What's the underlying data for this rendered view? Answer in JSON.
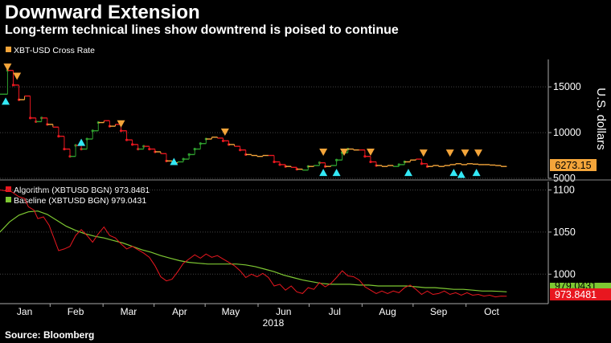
{
  "header": {
    "title": "Downward Extension",
    "subtitle": "Long-term technical lines show downtrend is poised to continue",
    "source": "Source: Bloomberg"
  },
  "chart_data": [
    {
      "type": "line",
      "panel": "price",
      "legend": [
        {
          "name": "XBT-USD Cross Rate",
          "color": "#f4a53a"
        }
      ],
      "ylabel": "U.S. dollars",
      "ylim": [
        5000,
        18000
      ],
      "yticks": [
        "15000",
        "10000",
        "5000"
      ],
      "ytick_values": [
        15000,
        10000,
        5000
      ],
      "last_value_label": "6273.15",
      "last_value": 6273.15,
      "colors": {
        "base": "#f4a53a",
        "up": "#2ea02e",
        "down": "#e8171f",
        "buy_marker": "#33e8f5",
        "sell_marker": "#f4a53a",
        "label_bg": "#f4a53a"
      },
      "x_range": [
        0,
        290
      ],
      "series": [
        {
          "x": 0,
          "y": 14200
        },
        {
          "x": 4,
          "y": 16800
        },
        {
          "x": 7,
          "y": 15200
        },
        {
          "x": 10,
          "y": 13600
        },
        {
          "x": 13,
          "y": 14000
        },
        {
          "x": 16,
          "y": 11600
        },
        {
          "x": 19,
          "y": 11200
        },
        {
          "x": 22,
          "y": 11600
        },
        {
          "x": 25,
          "y": 10900
        },
        {
          "x": 28,
          "y": 10600
        },
        {
          "x": 31,
          "y": 9600
        },
        {
          "x": 34,
          "y": 8200
        },
        {
          "x": 37,
          "y": 7400
        },
        {
          "x": 40,
          "y": 8600
        },
        {
          "x": 43,
          "y": 8200
        },
        {
          "x": 46,
          "y": 9300
        },
        {
          "x": 49,
          "y": 10200
        },
        {
          "x": 52,
          "y": 11100
        },
        {
          "x": 55,
          "y": 11300
        },
        {
          "x": 58,
          "y": 10700
        },
        {
          "x": 61,
          "y": 10900
        },
        {
          "x": 64,
          "y": 10200
        },
        {
          "x": 67,
          "y": 9200
        },
        {
          "x": 70,
          "y": 8700
        },
        {
          "x": 73,
          "y": 8200
        },
        {
          "x": 76,
          "y": 8500
        },
        {
          "x": 79,
          "y": 8200
        },
        {
          "x": 82,
          "y": 7900
        },
        {
          "x": 85,
          "y": 7700
        },
        {
          "x": 88,
          "y": 6900
        },
        {
          "x": 91,
          "y": 6700
        },
        {
          "x": 94,
          "y": 6800
        },
        {
          "x": 97,
          "y": 7100
        },
        {
          "x": 100,
          "y": 7600
        },
        {
          "x": 103,
          "y": 8200
        },
        {
          "x": 106,
          "y": 8800
        },
        {
          "x": 109,
          "y": 9300
        },
        {
          "x": 112,
          "y": 9500
        },
        {
          "x": 115,
          "y": 9400
        },
        {
          "x": 118,
          "y": 9100
        },
        {
          "x": 121,
          "y": 8700
        },
        {
          "x": 124,
          "y": 8500
        },
        {
          "x": 127,
          "y": 8100
        },
        {
          "x": 130,
          "y": 7600
        },
        {
          "x": 133,
          "y": 7500
        },
        {
          "x": 136,
          "y": 7400
        },
        {
          "x": 139,
          "y": 7500
        },
        {
          "x": 142,
          "y": 7500
        },
        {
          "x": 145,
          "y": 6800
        },
        {
          "x": 148,
          "y": 6500
        },
        {
          "x": 151,
          "y": 6300
        },
        {
          "x": 154,
          "y": 6200
        },
        {
          "x": 157,
          "y": 6000
        },
        {
          "x": 160,
          "y": 5900
        },
        {
          "x": 163,
          "y": 6300
        },
        {
          "x": 166,
          "y": 6400
        },
        {
          "x": 169,
          "y": 6700
        },
        {
          "x": 172,
          "y": 6300
        },
        {
          "x": 175,
          "y": 6400
        },
        {
          "x": 178,
          "y": 7000
        },
        {
          "x": 181,
          "y": 7800
        },
        {
          "x": 184,
          "y": 8200
        },
        {
          "x": 187,
          "y": 8100
        },
        {
          "x": 190,
          "y": 8100
        },
        {
          "x": 193,
          "y": 7400
        },
        {
          "x": 196,
          "y": 6800
        },
        {
          "x": 199,
          "y": 6400
        },
        {
          "x": 202,
          "y": 6300
        },
        {
          "x": 205,
          "y": 6400
        },
        {
          "x": 208,
          "y": 6300
        },
        {
          "x": 211,
          "y": 6500
        },
        {
          "x": 214,
          "y": 6800
        },
        {
          "x": 217,
          "y": 7000
        },
        {
          "x": 220,
          "y": 7100
        },
        {
          "x": 223,
          "y": 6600
        },
        {
          "x": 226,
          "y": 6300
        },
        {
          "x": 229,
          "y": 6400
        },
        {
          "x": 232,
          "y": 6300
        },
        {
          "x": 235,
          "y": 6400
        },
        {
          "x": 238,
          "y": 6500
        },
        {
          "x": 241,
          "y": 6600
        },
        {
          "x": 244,
          "y": 6500
        },
        {
          "x": 247,
          "y": 6600
        },
        {
          "x": 250,
          "y": 6550
        },
        {
          "x": 253,
          "y": 6500
        },
        {
          "x": 256,
          "y": 6500
        },
        {
          "x": 259,
          "y": 6450
        },
        {
          "x": 262,
          "y": 6400
        },
        {
          "x": 265,
          "y": 6300
        },
        {
          "x": 268,
          "y": 6273
        }
      ],
      "sell_markers": [
        {
          "x": 4,
          "y": 17200
        },
        {
          "x": 9,
          "y": 16200
        },
        {
          "x": 64,
          "y": 11000
        },
        {
          "x": 119,
          "y": 10100
        },
        {
          "x": 171,
          "y": 7900
        },
        {
          "x": 182,
          "y": 7900
        },
        {
          "x": 196,
          "y": 7900
        },
        {
          "x": 224,
          "y": 7800
        },
        {
          "x": 238,
          "y": 7800
        },
        {
          "x": 246,
          "y": 7800
        },
        {
          "x": 253,
          "y": 7800
        }
      ],
      "buy_markers": [
        {
          "x": 3,
          "y": 13400
        },
        {
          "x": 43,
          "y": 8900
        },
        {
          "x": 92,
          "y": 6800
        },
        {
          "x": 171,
          "y": 5600
        },
        {
          "x": 178,
          "y": 5600
        },
        {
          "x": 216,
          "y": 5600
        },
        {
          "x": 240,
          "y": 5600
        },
        {
          "x": 244,
          "y": 5400
        },
        {
          "x": 252,
          "y": 5600
        }
      ]
    },
    {
      "type": "line",
      "panel": "index",
      "series_meta": [
        {
          "name": "Algorithm (XBTUSD BGN)",
          "value": "973.8481",
          "color": "#e8171f"
        },
        {
          "name": "Baseline (XBTUSD BGN)",
          "value": "979.0431",
          "color": "#7ec832"
        }
      ],
      "ylim": [
        965,
        1110
      ],
      "yticks": [
        "1100",
        "1050",
        "1000"
      ],
      "ytick_values": [
        1100,
        1050,
        1000
      ],
      "last_value_labels": [
        "973.8481",
        "979.0431"
      ],
      "x_range": [
        0,
        290
      ],
      "x_categories": [
        "Jan",
        "Feb",
        "Mar",
        "Apr",
        "May",
        "Jun",
        "Jul",
        "Aug",
        "Sep",
        "Oct"
      ],
      "x_category_positions": [
        13,
        40,
        68,
        95,
        122,
        150,
        177,
        205,
        232,
        260
      ],
      "x_year_label": "2018",
      "algorithm": [
        {
          "x": 0,
          "y": 1100
        },
        {
          "x": 6,
          "y": 1098
        },
        {
          "x": 10,
          "y": 1092
        },
        {
          "x": 13,
          "y": 1090
        },
        {
          "x": 15,
          "y": 1080
        },
        {
          "x": 18,
          "y": 1076
        },
        {
          "x": 20,
          "y": 1066
        },
        {
          "x": 23,
          "y": 1068
        },
        {
          "x": 26,
          "y": 1058
        },
        {
          "x": 29,
          "y": 1040
        },
        {
          "x": 31,
          "y": 1028
        },
        {
          "x": 34,
          "y": 1030
        },
        {
          "x": 37,
          "y": 1033
        },
        {
          "x": 40,
          "y": 1046
        },
        {
          "x": 43,
          "y": 1053
        },
        {
          "x": 46,
          "y": 1046
        },
        {
          "x": 49,
          "y": 1038
        },
        {
          "x": 52,
          "y": 1048
        },
        {
          "x": 55,
          "y": 1056
        },
        {
          "x": 58,
          "y": 1046
        },
        {
          "x": 61,
          "y": 1043
        },
        {
          "x": 64,
          "y": 1036
        },
        {
          "x": 67,
          "y": 1030
        },
        {
          "x": 70,
          "y": 1033
        },
        {
          "x": 73,
          "y": 1029
        },
        {
          "x": 76,
          "y": 1025
        },
        {
          "x": 79,
          "y": 1020
        },
        {
          "x": 82,
          "y": 1010
        },
        {
          "x": 85,
          "y": 997
        },
        {
          "x": 88,
          "y": 992
        },
        {
          "x": 91,
          "y": 994
        },
        {
          "x": 94,
          "y": 1003
        },
        {
          "x": 97,
          "y": 1013
        },
        {
          "x": 100,
          "y": 1018
        },
        {
          "x": 103,
          "y": 1023
        },
        {
          "x": 106,
          "y": 1019
        },
        {
          "x": 109,
          "y": 1024
        },
        {
          "x": 112,
          "y": 1020
        },
        {
          "x": 115,
          "y": 1022
        },
        {
          "x": 118,
          "y": 1018
        },
        {
          "x": 121,
          "y": 1014
        },
        {
          "x": 124,
          "y": 1010
        },
        {
          "x": 127,
          "y": 1004
        },
        {
          "x": 130,
          "y": 996
        },
        {
          "x": 133,
          "y": 1000
        },
        {
          "x": 136,
          "y": 997
        },
        {
          "x": 139,
          "y": 1001
        },
        {
          "x": 142,
          "y": 996
        },
        {
          "x": 145,
          "y": 986
        },
        {
          "x": 148,
          "y": 988
        },
        {
          "x": 151,
          "y": 981
        },
        {
          "x": 154,
          "y": 986
        },
        {
          "x": 157,
          "y": 979
        },
        {
          "x": 160,
          "y": 977
        },
        {
          "x": 163,
          "y": 984
        },
        {
          "x": 166,
          "y": 982
        },
        {
          "x": 169,
          "y": 990
        },
        {
          "x": 172,
          "y": 985
        },
        {
          "x": 175,
          "y": 989
        },
        {
          "x": 178,
          "y": 996
        },
        {
          "x": 181,
          "y": 1004
        },
        {
          "x": 184,
          "y": 998
        },
        {
          "x": 187,
          "y": 997
        },
        {
          "x": 190,
          "y": 993
        },
        {
          "x": 193,
          "y": 985
        },
        {
          "x": 196,
          "y": 981
        },
        {
          "x": 199,
          "y": 977
        },
        {
          "x": 202,
          "y": 980
        },
        {
          "x": 205,
          "y": 977
        },
        {
          "x": 208,
          "y": 980
        },
        {
          "x": 211,
          "y": 978
        },
        {
          "x": 214,
          "y": 984
        },
        {
          "x": 217,
          "y": 987
        },
        {
          "x": 220,
          "y": 982
        },
        {
          "x": 223,
          "y": 976
        },
        {
          "x": 226,
          "y": 980
        },
        {
          "x": 229,
          "y": 976
        },
        {
          "x": 232,
          "y": 977
        },
        {
          "x": 235,
          "y": 980
        },
        {
          "x": 238,
          "y": 976
        },
        {
          "x": 241,
          "y": 978
        },
        {
          "x": 244,
          "y": 975
        },
        {
          "x": 247,
          "y": 978
        },
        {
          "x": 250,
          "y": 975
        },
        {
          "x": 253,
          "y": 976
        },
        {
          "x": 256,
          "y": 974
        },
        {
          "x": 259,
          "y": 975
        },
        {
          "x": 262,
          "y": 973
        },
        {
          "x": 265,
          "y": 974
        },
        {
          "x": 268,
          "y": 973.8
        }
      ],
      "baseline": [
        {
          "x": 0,
          "y": 1050
        },
        {
          "x": 5,
          "y": 1062
        },
        {
          "x": 10,
          "y": 1070
        },
        {
          "x": 15,
          "y": 1074
        },
        {
          "x": 20,
          "y": 1075
        },
        {
          "x": 25,
          "y": 1071
        },
        {
          "x": 30,
          "y": 1064
        },
        {
          "x": 35,
          "y": 1057
        },
        {
          "x": 40,
          "y": 1052
        },
        {
          "x": 45,
          "y": 1048
        },
        {
          "x": 50,
          "y": 1045
        },
        {
          "x": 55,
          "y": 1043
        },
        {
          "x": 60,
          "y": 1040
        },
        {
          "x": 65,
          "y": 1037
        },
        {
          "x": 70,
          "y": 1033
        },
        {
          "x": 75,
          "y": 1029
        },
        {
          "x": 80,
          "y": 1026
        },
        {
          "x": 85,
          "y": 1022
        },
        {
          "x": 90,
          "y": 1019
        },
        {
          "x": 95,
          "y": 1016
        },
        {
          "x": 100,
          "y": 1014
        },
        {
          "x": 105,
          "y": 1013
        },
        {
          "x": 110,
          "y": 1012
        },
        {
          "x": 115,
          "y": 1012
        },
        {
          "x": 120,
          "y": 1012
        },
        {
          "x": 125,
          "y": 1012
        },
        {
          "x": 130,
          "y": 1011
        },
        {
          "x": 135,
          "y": 1009
        },
        {
          "x": 140,
          "y": 1006
        },
        {
          "x": 145,
          "y": 1003
        },
        {
          "x": 150,
          "y": 999
        },
        {
          "x": 155,
          "y": 996
        },
        {
          "x": 160,
          "y": 993
        },
        {
          "x": 165,
          "y": 991
        },
        {
          "x": 170,
          "y": 989
        },
        {
          "x": 175,
          "y": 988
        },
        {
          "x": 180,
          "y": 988
        },
        {
          "x": 185,
          "y": 988
        },
        {
          "x": 190,
          "y": 987
        },
        {
          "x": 195,
          "y": 987
        },
        {
          "x": 200,
          "y": 986
        },
        {
          "x": 205,
          "y": 986
        },
        {
          "x": 210,
          "y": 986
        },
        {
          "x": 215,
          "y": 986
        },
        {
          "x": 220,
          "y": 985
        },
        {
          "x": 225,
          "y": 984
        },
        {
          "x": 230,
          "y": 984
        },
        {
          "x": 235,
          "y": 983
        },
        {
          "x": 240,
          "y": 982
        },
        {
          "x": 245,
          "y": 982
        },
        {
          "x": 250,
          "y": 981
        },
        {
          "x": 255,
          "y": 980
        },
        {
          "x": 260,
          "y": 980
        },
        {
          "x": 265,
          "y": 979.5
        },
        {
          "x": 268,
          "y": 979
        }
      ]
    }
  ]
}
